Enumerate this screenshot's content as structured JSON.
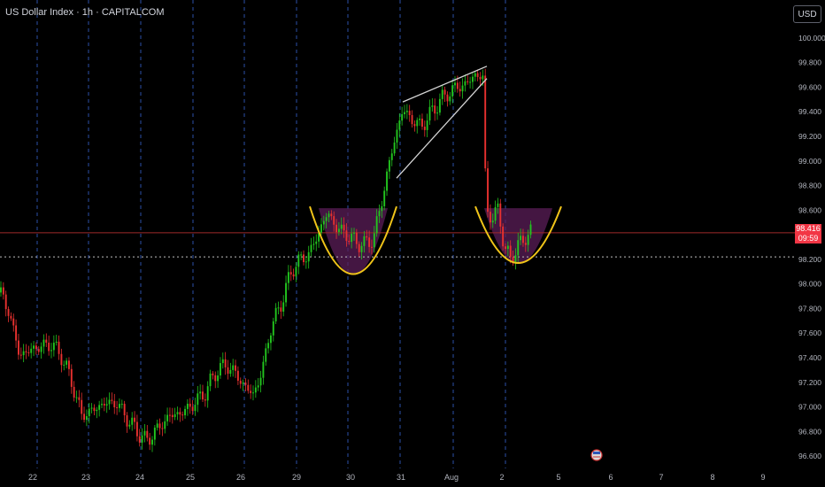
{
  "header": {
    "title": "US Dollar Index · 1h · CAPITALCOM",
    "currency_button": "USD"
  },
  "colors": {
    "background": "#000000",
    "up": "#22c51e",
    "down": "#e8312f",
    "grid_vertical": "#2b4fa8",
    "pattern_line": "#d5d5d5",
    "cup_curve": "#f0c419",
    "cup_fill": "#5b1e58",
    "price_line": "#9e2a2a",
    "price_tag": "#f23645"
  },
  "price_tag": {
    "price": "98.416",
    "countdown": "09:59"
  },
  "chart_data": {
    "type": "candlestick",
    "ylim": [
      96.5,
      100.1
    ],
    "y_ticks": [
      "100.000",
      "99.800",
      "99.600",
      "99.400",
      "99.200",
      "99.000",
      "98.800",
      "98.600",
      "98.400",
      "98.200",
      "98.000",
      "97.800",
      "97.600",
      "97.400",
      "97.200",
      "97.000",
      "96.800",
      "96.600"
    ],
    "x_ticks": [
      "22",
      "23",
      "24",
      "25",
      "26",
      "29",
      "30",
      "31",
      "Aug",
      "2",
      "5",
      "6",
      "7",
      "8",
      "9"
    ],
    "last_price": 98.416,
    "support_dotted": 98.22,
    "close_path": [
      [
        0,
        97.93
      ],
      [
        10,
        97.78
      ],
      [
        22,
        97.42
      ],
      [
        40,
        97.48
      ],
      [
        58,
        97.51
      ],
      [
        70,
        97.41
      ],
      [
        82,
        97.18
      ],
      [
        92,
        96.93
      ],
      [
        104,
        96.97
      ],
      [
        118,
        97.03
      ],
      [
        132,
        97.03
      ],
      [
        148,
        96.86
      ],
      [
        165,
        96.72
      ],
      [
        178,
        96.82
      ],
      [
        192,
        96.93
      ],
      [
        205,
        96.95
      ],
      [
        218,
        97.02
      ],
      [
        232,
        97.12
      ],
      [
        245,
        97.3
      ],
      [
        256,
        97.34
      ],
      [
        265,
        97.28
      ],
      [
        275,
        97.18
      ],
      [
        286,
        97.1
      ],
      [
        296,
        97.28
      ],
      [
        305,
        97.62
      ],
      [
        318,
        97.85
      ],
      [
        330,
        98.12
      ],
      [
        340,
        98.2
      ],
      [
        350,
        98.25
      ],
      [
        360,
        98.42
      ],
      [
        370,
        98.58
      ],
      [
        380,
        98.46
      ],
      [
        392,
        98.4
      ],
      [
        402,
        98.34
      ],
      [
        412,
        98.32
      ],
      [
        422,
        98.37
      ],
      [
        432,
        98.7
      ],
      [
        438,
        98.92
      ],
      [
        445,
        99.15
      ],
      [
        455,
        99.42
      ],
      [
        466,
        99.33
      ],
      [
        476,
        99.28
      ],
      [
        486,
        99.38
      ],
      [
        496,
        99.48
      ],
      [
        506,
        99.55
      ],
      [
        516,
        99.6
      ],
      [
        526,
        99.62
      ],
      [
        536,
        99.7
      ],
      [
        546,
        99.68
      ],
      [
        549,
        98.62
      ],
      [
        556,
        98.52
      ],
      [
        563,
        98.62
      ],
      [
        570,
        98.28
      ],
      [
        577,
        98.2
      ],
      [
        584,
        98.3
      ],
      [
        592,
        98.36
      ],
      [
        600,
        98.44
      ]
    ],
    "patterns": {
      "rising_wedge_upper": [
        [
          455,
          99.48
        ],
        [
          550,
          99.77
        ]
      ],
      "rising_wedge_lower": [
        [
          448,
          98.86
        ],
        [
          550,
          99.67
        ]
      ],
      "cup_left": {
        "from_x": 350,
        "to_x": 448,
        "rim": 98.63,
        "bottom": 98.08
      },
      "cup_right": {
        "from_x": 537,
        "to_x": 634,
        "rim": 98.63,
        "bottom": 98.17
      }
    },
    "event_marker": {
      "x": 674,
      "icon": "us-flag-icon"
    }
  }
}
